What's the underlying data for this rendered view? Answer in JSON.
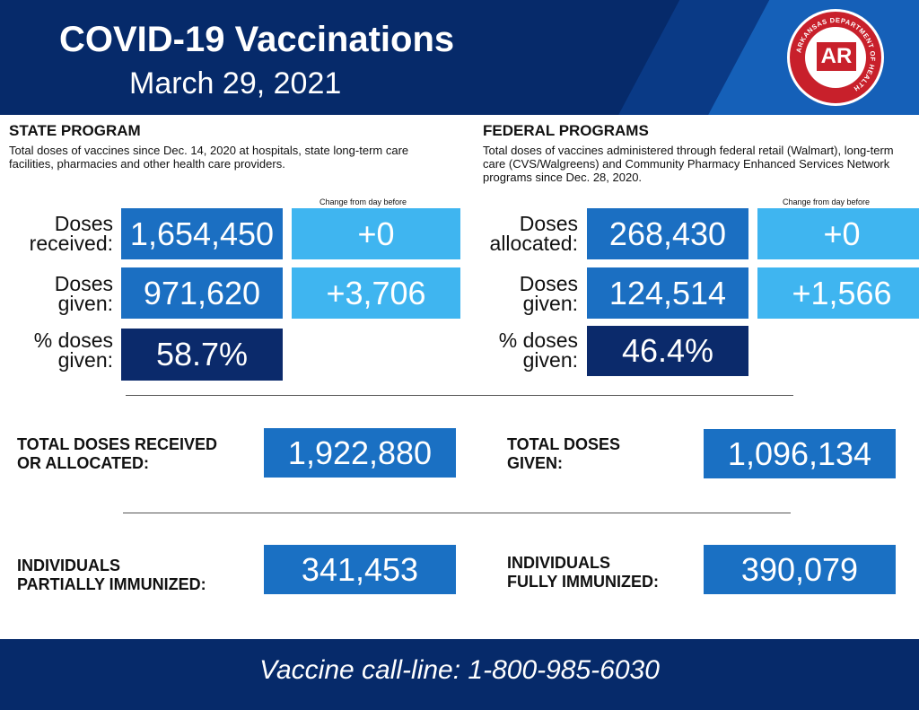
{
  "header": {
    "title": "COVID-19 Vaccinations",
    "date": "March 29, 2021",
    "logo": {
      "ring_text": "ARKANSAS DEPARTMENT OF HEALTH",
      "monogram": "AR"
    }
  },
  "state": {
    "heading": "STATE PROGRAM",
    "description": "Total doses of vaccines since Dec. 14, 2020 at hospitals, state long-term care facilities, pharmacies and other health care providers.",
    "change_header": "Change from day before",
    "received_label_1": "Doses",
    "received_label_2": "received:",
    "received_value": "1,654,450",
    "received_change": "+0",
    "given_label_1": "Doses",
    "given_label_2": "given:",
    "given_value": "971,620",
    "given_change": "+3,706",
    "pct_label_1": "% doses",
    "pct_label_2": "given:",
    "pct_value": "58.7%"
  },
  "federal": {
    "heading": "FEDERAL PROGRAMS",
    "description": "Total doses of vaccines administered through federal retail (Walmart), long-term care (CVS/Walgreens) and Community Pharmacy Enhanced Services Network programs since Dec. 28, 2020.",
    "change_header": "Change from day before",
    "allocated_label_1": "Doses",
    "allocated_label_2": "allocated:",
    "allocated_value": "268,430",
    "allocated_change": "+0",
    "given_label_1": "Doses",
    "given_label_2": "given:",
    "given_value": "124,514",
    "given_change": "+1,566",
    "pct_label_1": "% doses",
    "pct_label_2": "given:",
    "pct_value": "46.4%"
  },
  "totals": {
    "received_label_1": "TOTAL DOSES RECEIVED",
    "received_label_2": "OR ALLOCATED:",
    "received_value": "1,922,880",
    "given_label_1": "TOTAL DOSES",
    "given_label_2": "GIVEN:",
    "given_value": "1,096,134"
  },
  "immunized": {
    "partial_label_1": "INDIVIDUALS",
    "partial_label_2": "PARTIALLY IMMUNIZED:",
    "partial_value": "341,453",
    "full_label_1": "INDIVIDUALS",
    "full_label_2": "FULLY IMMUNIZED:",
    "full_value": "390,079"
  },
  "footer": {
    "call_line": "Vaccine call-line: 1-800-985-6030"
  },
  "colors": {
    "navy": "#062a6a",
    "mid_blue": "#1b6fc2",
    "light_blue": "#3fb5f0",
    "dark_box": "#0b2a6b",
    "logo_red": "#c8202b"
  }
}
